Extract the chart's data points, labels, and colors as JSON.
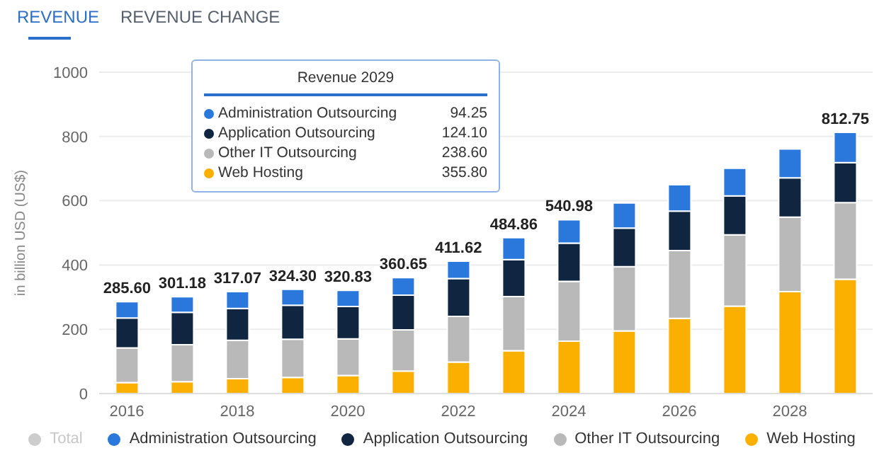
{
  "chart_data": {
    "type": "bar",
    "stacked": true,
    "ylabel": "in billion USD (US$)",
    "categories": [
      "2016",
      null,
      "2018",
      null,
      "2020",
      null,
      "2022",
      null,
      "2024",
      null,
      "2026",
      null,
      "2028",
      null
    ],
    "series": [
      {
        "name": "Web Hosting",
        "color": "#fbb000",
        "values": [
          34,
          37,
          46,
          50,
          56,
          70,
          98,
          133,
          163,
          195,
          234,
          272,
          317,
          355.8
        ]
      },
      {
        "name": "Other IT Outsourcing",
        "color": "#b9b9b9",
        "values": [
          108,
          115,
          120,
          119,
          114,
          128,
          142,
          169,
          186,
          200,
          211,
          222,
          232,
          238.6
        ]
      },
      {
        "name": "Application Outsourcing",
        "color": "#0f2540",
        "values": [
          93,
          101,
          99,
          106,
          101,
          108,
          118,
          115,
          119,
          120,
          123,
          121,
          122,
          124.1
        ]
      },
      {
        "name": "Administration Outsourcing",
        "color": "#2b78dc",
        "values": [
          50.6,
          48.18,
          52.07,
          49.3,
          49.83,
          54.65,
          53.62,
          67.86,
          72.98,
          78,
          82,
          86,
          90,
          94.25
        ]
      }
    ],
    "totals": [
      "285.60",
      "301.18",
      "317.07",
      "324.30",
      "320.83",
      "360.65",
      "411.62",
      "484.86",
      "540.98",
      null,
      null,
      null,
      null,
      "812.75"
    ],
    "ylim": [
      0,
      1000
    ],
    "yticks": [
      0,
      200,
      400,
      600,
      800,
      1000
    ],
    "grid": "y",
    "legend": "bottom",
    "annotations": [
      "REVENUE",
      "REVENUE CHANGE",
      "Revenue 2029",
      "94.25",
      "124.10",
      "238.60",
      "355.80",
      "Total"
    ]
  }
}
